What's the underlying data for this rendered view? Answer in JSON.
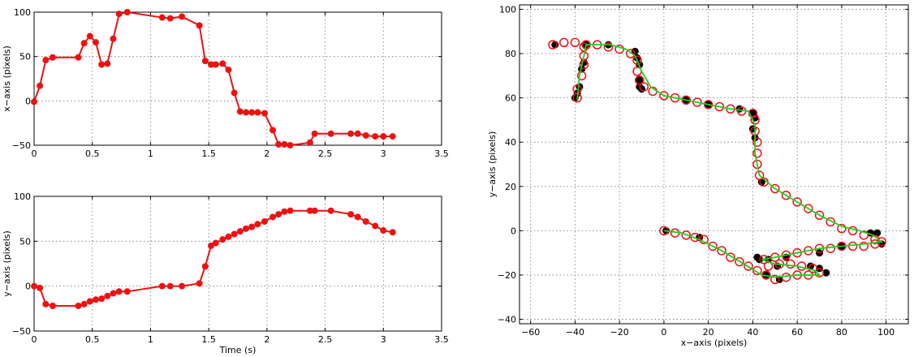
{
  "chart_data": [
    {
      "type": "line",
      "xlabel": "",
      "ylabel": "x−axis (pixels)",
      "xlim": [
        0,
        3.5
      ],
      "ylim": [
        -50,
        100
      ],
      "xticks": [
        0,
        0.5,
        1,
        1.5,
        2,
        2.5,
        3,
        3.5
      ],
      "yticks": [
        -50,
        0,
        50,
        100
      ],
      "xtick_labels": [
        "0",
        "0.5",
        "1",
        "1.5",
        "2",
        "2.5",
        "3",
        "3.5"
      ],
      "ytick_labels": [
        "−50",
        "0",
        "50",
        "100"
      ],
      "grid": true,
      "color": "#ee1111",
      "series": [
        {
          "x": [
            0,
            0.05,
            0.1,
            0.16,
            0.38,
            0.43,
            0.48,
            0.53,
            0.58,
            0.63,
            0.68,
            0.73,
            0.8,
            1.1,
            1.17,
            1.27,
            1.42,
            1.47,
            1.52,
            1.56,
            1.62,
            1.67,
            1.72,
            1.77,
            1.82,
            1.87,
            1.92,
            1.98,
            2.05,
            2.1,
            2.15,
            2.2,
            2.37,
            2.41,
            2.55,
            2.72,
            2.78,
            2.85,
            2.93,
            3.0,
            3.08
          ],
          "y": [
            -1,
            17,
            46,
            49,
            49,
            65,
            73,
            66,
            41,
            42,
            70,
            98,
            100,
            94,
            93,
            95,
            85,
            45,
            41,
            41,
            42,
            35,
            9,
            -12,
            -13,
            -13,
            -13,
            -14,
            -33,
            -49,
            -49,
            -50,
            -47,
            -37,
            -37,
            -37,
            -37,
            -39,
            -40,
            -40,
            -40
          ]
        }
      ]
    },
    {
      "type": "line",
      "xlabel": "Time (s)",
      "ylabel": "y−axis (pixels)",
      "xlim": [
        0,
        3.5
      ],
      "ylim": [
        -50,
        100
      ],
      "xticks": [
        0,
        0.5,
        1,
        1.5,
        2,
        2.5,
        3,
        3.5
      ],
      "yticks": [
        -50,
        0,
        50,
        100
      ],
      "xtick_labels": [
        "0",
        "0.5",
        "1",
        "1.5",
        "2",
        "2.5",
        "3",
        "3.5"
      ],
      "ytick_labels": [
        "−50",
        "0",
        "50",
        "100"
      ],
      "grid": true,
      "color": "#ee1111",
      "series": [
        {
          "x": [
            0,
            0.05,
            0.1,
            0.16,
            0.38,
            0.43,
            0.48,
            0.53,
            0.58,
            0.63,
            0.68,
            0.73,
            0.8,
            1.1,
            1.17,
            1.27,
            1.42,
            1.47,
            1.52,
            1.56,
            1.62,
            1.67,
            1.72,
            1.77,
            1.82,
            1.87,
            1.92,
            1.98,
            2.05,
            2.1,
            2.15,
            2.2,
            2.37,
            2.41,
            2.55,
            2.72,
            2.78,
            2.85,
            2.93,
            3.0,
            3.08
          ],
          "y": [
            0,
            -2,
            -20,
            -22,
            -22,
            -20,
            -17,
            -15,
            -14,
            -11,
            -8,
            -6,
            -6,
            0,
            0,
            0,
            3,
            22,
            45,
            48,
            52,
            55,
            58,
            61,
            64,
            66,
            69,
            72,
            77,
            80,
            83,
            84,
            84,
            84,
            84,
            80,
            77,
            72,
            67,
            62,
            60
          ]
        }
      ]
    },
    {
      "type": "scatter",
      "xlabel": "x−axis (pixels)",
      "ylabel": "y−axis (pixels)",
      "xlim": [
        -65,
        110
      ],
      "ylim": [
        -42,
        102
      ],
      "xticks": [
        -60,
        -40,
        -20,
        0,
        20,
        40,
        60,
        80,
        100
      ],
      "yticks": [
        -40,
        -20,
        0,
        20,
        40,
        60,
        80,
        100
      ],
      "xtick_labels": [
        "−60",
        "−40",
        "−20",
        "0",
        "20",
        "40",
        "60",
        "80",
        "100"
      ],
      "ytick_labels": [
        "−40",
        "−20",
        "0",
        "20",
        "40",
        "60",
        "80",
        "100"
      ],
      "grid": true,
      "colors": {
        "measured": "#000000",
        "estimated": "#ee1111",
        "track": "#22cc22"
      },
      "series": [
        {
          "points": [
            [
              -49,
              84
            ],
            [
              -40,
              60
            ],
            [
              -39,
              62
            ],
            [
              -38,
              65
            ],
            [
              -37,
              73
            ],
            [
              -36,
              76
            ],
            [
              -35,
              84
            ],
            [
              -25,
              84
            ],
            [
              -13,
              81
            ],
            [
              -12,
              78
            ],
            [
              -11,
              75
            ],
            [
              -11,
              68
            ],
            [
              -11,
              65
            ],
            [
              -10,
              64
            ],
            [
              10,
              59
            ],
            [
              20,
              57
            ],
            [
              34,
              55
            ],
            [
              40,
              53
            ],
            [
              41,
              51
            ],
            [
              40,
              46
            ],
            [
              41,
              42
            ],
            [
              44,
              22
            ],
            [
              93,
              -1
            ],
            [
              96,
              -1
            ],
            [
              98,
              -6
            ],
            [
              80,
              -7
            ],
            [
              70,
              -10
            ],
            [
              55,
              -12
            ],
            [
              43,
              -13
            ],
            [
              42,
              -12
            ],
            [
              47,
              -13
            ],
            [
              51,
              -16
            ],
            [
              66,
              -16
            ],
            [
              70,
              -17
            ],
            [
              73,
              -19
            ],
            [
              52,
              -22
            ],
            [
              46,
              -20
            ],
            [
              16,
              -3
            ],
            [
              1,
              0
            ]
          ]
        },
        {
          "points": [
            [
              -50,
              84
            ],
            [
              -45,
              85
            ],
            [
              -40,
              85
            ],
            [
              -35,
              84
            ],
            [
              -30,
              84
            ],
            [
              -25,
              83
            ],
            [
              -20,
              82
            ],
            [
              -15,
              80
            ],
            [
              -12,
              77
            ],
            [
              -12,
              72
            ],
            [
              -11,
              68
            ],
            [
              -9,
              65
            ],
            [
              -5,
              63
            ],
            [
              0,
              61
            ],
            [
              5,
              60
            ],
            [
              10,
              59
            ],
            [
              15,
              58
            ],
            [
              20,
              57
            ],
            [
              25,
              56
            ],
            [
              30,
              55
            ],
            [
              35,
              54
            ],
            [
              40,
              53
            ],
            [
              41,
              50
            ],
            [
              41,
              45
            ],
            [
              42,
              40
            ],
            [
              42,
              35
            ],
            [
              42,
              30
            ],
            [
              43,
              25
            ],
            [
              45,
              22
            ],
            [
              50,
              19
            ],
            [
              55,
              16
            ],
            [
              60,
              13
            ],
            [
              65,
              10
            ],
            [
              70,
              7
            ],
            [
              75,
              4
            ],
            [
              80,
              1
            ],
            [
              85,
              0
            ],
            [
              90,
              -2
            ],
            [
              95,
              -4
            ],
            [
              98,
              -5
            ],
            [
              95,
              -6
            ],
            [
              90,
              -7
            ],
            [
              85,
              -7
            ],
            [
              80,
              -7
            ],
            [
              75,
              -8
            ],
            [
              70,
              -8
            ],
            [
              65,
              -9
            ],
            [
              60,
              -10
            ],
            [
              55,
              -11
            ],
            [
              50,
              -12
            ],
            [
              45,
              -13
            ],
            [
              47,
              -16
            ],
            [
              52,
              -15
            ],
            [
              57,
              -15
            ],
            [
              62,
              -16
            ],
            [
              67,
              -17
            ],
            [
              70,
              -19
            ],
            [
              65,
              -20
            ],
            [
              60,
              -20
            ],
            [
              55,
              -21
            ],
            [
              50,
              -22
            ],
            [
              46,
              -20
            ],
            [
              42,
              -18
            ],
            [
              38,
              -16
            ],
            [
              34,
              -14
            ],
            [
              30,
              -12
            ],
            [
              26,
              -9
            ],
            [
              22,
              -7
            ],
            [
              18,
              -4
            ],
            [
              14,
              -3
            ],
            [
              10,
              -2
            ],
            [
              5,
              -1
            ],
            [
              0,
              0
            ],
            [
              -39,
              60
            ],
            [
              -39,
              64
            ],
            [
              -37,
              70
            ],
            [
              -36,
              75
            ],
            [
              -36,
              79
            ],
            [
              -36,
              83
            ]
          ]
        },
        {
          "points": [
            [
              -39,
              59
            ],
            [
              -38,
              70
            ],
            [
              -36,
              79
            ],
            [
              -35,
              84
            ],
            [
              -30,
              84
            ],
            [
              -24,
              84
            ],
            [
              -17,
              82
            ],
            [
              -13,
              79
            ],
            [
              -10,
              72
            ],
            [
              -6,
              65
            ],
            [
              0,
              61
            ],
            [
              10,
              59
            ],
            [
              20,
              57
            ],
            [
              30,
              55
            ],
            [
              38,
              54
            ],
            [
              41,
              48
            ],
            [
              41,
              35
            ],
            [
              43,
              25
            ],
            [
              50,
              19
            ],
            [
              60,
              13
            ],
            [
              70,
              7
            ],
            [
              80,
              2
            ],
            [
              88,
              0
            ],
            [
              94,
              -2
            ],
            [
              98,
              -5
            ],
            [
              90,
              -6
            ],
            [
              80,
              -7
            ],
            [
              70,
              -8
            ],
            [
              60,
              -10
            ],
            [
              50,
              -12
            ],
            [
              44,
              -13
            ],
            [
              50,
              -15
            ],
            [
              60,
              -16
            ],
            [
              68,
              -18
            ],
            [
              70,
              -20
            ],
            [
              60,
              -20
            ],
            [
              50,
              -21
            ],
            [
              44,
              -20
            ],
            [
              36,
              -15
            ],
            [
              26,
              -9
            ],
            [
              16,
              -4
            ],
            [
              8,
              -1
            ],
            [
              0,
              0
            ]
          ]
        }
      ]
    }
  ]
}
